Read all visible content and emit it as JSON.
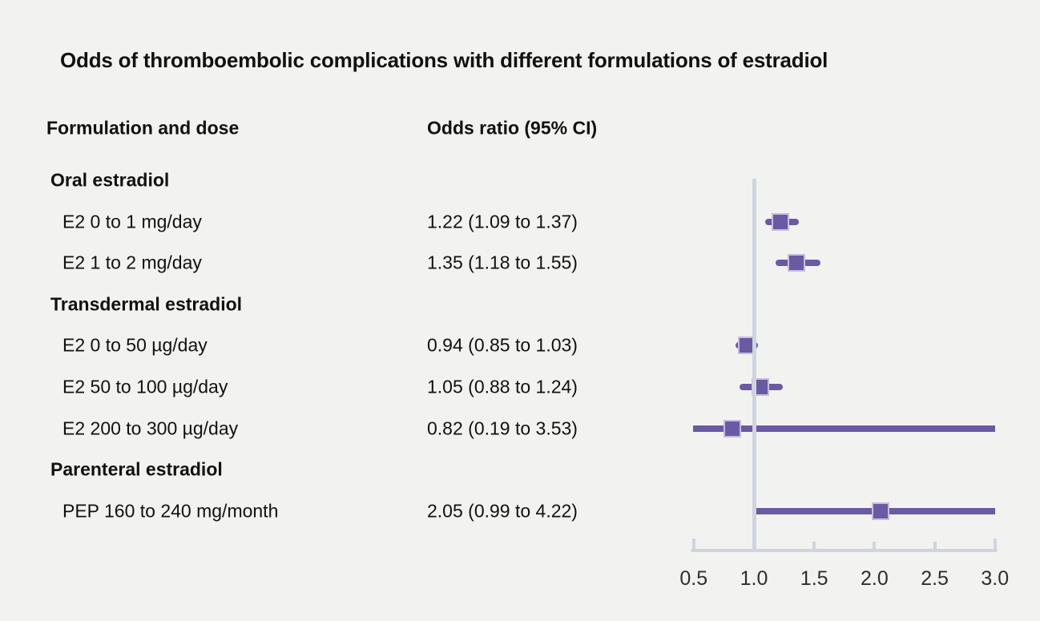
{
  "title": "Odds of thromboembolic complications with different formulations of estradiol",
  "columns": {
    "formulation": "Formulation and dose",
    "odds_ratio": "Odds ratio (95% CI)"
  },
  "chart_data": {
    "type": "forest",
    "title": "Odds of thromboembolic complications with different formulations of estradiol",
    "xlabel": "Odds ratio (95% CI)",
    "axis": {
      "min": 0.5,
      "max": 3.0,
      "ticks": [
        0.5,
        1.0,
        1.5,
        2.0,
        2.5,
        3.0
      ],
      "tick_labels": [
        "0.5",
        "1.0",
        "1.5",
        "2.0",
        "2.5",
        "3.0"
      ],
      "reference_line": 1.0,
      "grid": false
    },
    "groups": [
      {
        "label": "Oral estradiol",
        "items": [
          {
            "label": "E2 0 to 1 mg/day",
            "or": 1.22,
            "ci_low": 1.09,
            "ci_high": 1.37,
            "display": "1.22 (1.09 to 1.37)"
          },
          {
            "label": "E2 1 to 2 mg/day",
            "or": 1.35,
            "ci_low": 1.18,
            "ci_high": 1.55,
            "display": "1.35 (1.18 to 1.55)"
          }
        ]
      },
      {
        "label": "Transdermal estradiol",
        "items": [
          {
            "label": "E2 0 to 50 µg/day",
            "or": 0.94,
            "ci_low": 0.85,
            "ci_high": 1.03,
            "display": "0.94 (0.85 to 1.03)"
          },
          {
            "label": "E2 50 to 100 µg/day",
            "or": 1.05,
            "ci_low": 0.88,
            "ci_high": 1.24,
            "display": "1.05 (0.88 to 1.24)"
          },
          {
            "label": "E2 200 to 300 µg/day",
            "or": 0.82,
            "ci_low": 0.19,
            "ci_high": 3.53,
            "display": "0.82 (0.19 to 3.53)"
          }
        ]
      },
      {
        "label": "Parenteral estradiol",
        "items": [
          {
            "label": "PEP 160 to 240 mg/month",
            "or": 2.05,
            "ci_low": 0.99,
            "ci_high": 4.22,
            "display": "2.05 (0.99 to 4.22)"
          }
        ]
      }
    ]
  },
  "colors": {
    "background": "#f2f2f1",
    "marker": "#6a5aa3",
    "marker_border": "#c6bce0",
    "axis": "#cfd4dd",
    "text": "#111111",
    "tick_text": "#2e2e2e"
  }
}
